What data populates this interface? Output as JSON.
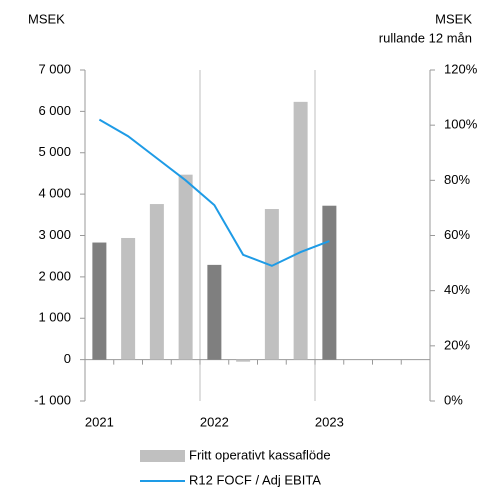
{
  "chart_data": {
    "type": "bar-line",
    "y_label": "MSEK",
    "y2_label": [
      "MSEK",
      "rullande 12 mån"
    ],
    "categories": [
      "2021",
      null,
      null,
      null,
      "2022",
      null,
      null,
      null,
      "2023",
      null,
      null,
      null
    ],
    "series": [
      {
        "name": "Fritt operativt kassaflöde",
        "type": "bar",
        "color": "#c0c0c0",
        "colors": [
          "#7f7f7f",
          "#c0c0c0",
          "#c0c0c0",
          "#c0c0c0",
          "#7f7f7f",
          "#c0c0c0",
          "#c0c0c0",
          "#c0c0c0",
          "#7f7f7f",
          "#c0c0c0",
          "#c0c0c0",
          "#c0c0c0"
        ],
        "values": [
          2830,
          2940,
          3760,
          4470,
          2290,
          -50,
          3640,
          6230,
          3720,
          null,
          null,
          null
        ]
      },
      {
        "name": "R12 FOCF / Adj EBITA",
        "type": "line",
        "axis": "y2",
        "color": "#1e9be6",
        "values": [
          102,
          96,
          88,
          80,
          71,
          53,
          49,
          54,
          58,
          null,
          null,
          null
        ]
      }
    ],
    "ylim": [
      -1000,
      7000
    ],
    "yticks": [
      {
        "value": -1000,
        "label": "-1 000"
      },
      0,
      {
        "value": 1000,
        "label": "1 000"
      },
      {
        "value": 2000,
        "label": "2 000"
      },
      {
        "value": 3000,
        "label": "3 000"
      },
      {
        "value": 4000,
        "label": "4 000"
      },
      {
        "value": 5000,
        "label": "5 000"
      },
      {
        "value": 6000,
        "label": "6 000"
      },
      {
        "value": 7000,
        "label": "7 000"
      }
    ],
    "y2lim": [
      0,
      120
    ],
    "y2ticks": [
      {
        "value": 0,
        "label": "0%"
      },
      {
        "value": 20,
        "label": "20%"
      },
      {
        "value": 40,
        "label": "40%"
      },
      {
        "value": 60,
        "label": "60%"
      },
      {
        "value": 80,
        "label": "80%"
      },
      {
        "value": 100,
        "label": "100%"
      },
      {
        "value": 120,
        "label": "120%"
      }
    ]
  }
}
